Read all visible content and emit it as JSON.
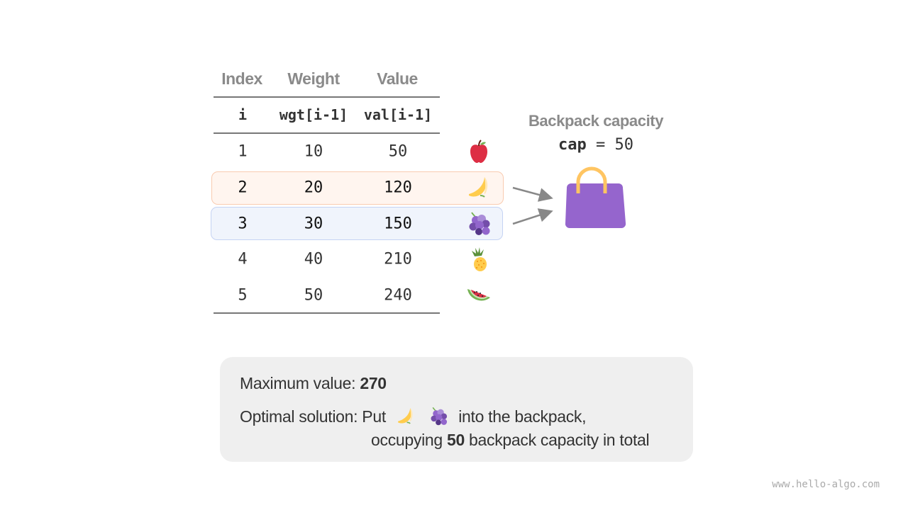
{
  "table": {
    "headers": [
      "Index",
      "Weight",
      "Value"
    ],
    "subheaders": [
      "i",
      "wgt[i-1]",
      "val[i-1]"
    ],
    "rows": [
      {
        "i": "1",
        "wgt": "10",
        "val": "50",
        "fruit": "apple-icon"
      },
      {
        "i": "2",
        "wgt": "20",
        "val": "120",
        "fruit": "banana-icon",
        "highlight": "#fff5ef"
      },
      {
        "i": "3",
        "wgt": "30",
        "val": "150",
        "fruit": "grapes-icon",
        "highlight": "#f0f4fc"
      },
      {
        "i": "4",
        "wgt": "40",
        "val": "210",
        "fruit": "pineapple-icon"
      },
      {
        "i": "5",
        "wgt": "50",
        "val": "240",
        "fruit": "watermelon-icon"
      }
    ]
  },
  "backpack": {
    "title": "Backpack capacity",
    "cap_label": "cap",
    "cap_eq": " = ",
    "cap_value": "50",
    "color": "#9565cd"
  },
  "result": {
    "max_label": "Maximum value: ",
    "max_value": "270",
    "solution_prefix": "Optimal solution: Put",
    "solution_suffix": "into the backpack,",
    "line3_prefix": "occupying ",
    "line3_value": "50",
    "line3_suffix": " backpack capacity in total"
  },
  "watermark": "www.hello-algo.com"
}
